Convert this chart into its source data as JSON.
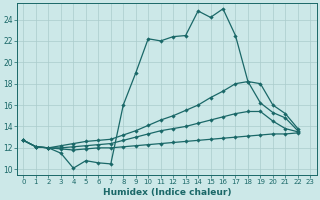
{
  "xlabel": "Humidex (Indice chaleur)",
  "bg_color": "#cce8e8",
  "grid_color": "#aacccc",
  "line_color": "#1a6868",
  "xlim": [
    -0.5,
    23.5
  ],
  "ylim": [
    9.5,
    25.5
  ],
  "xticks": [
    0,
    1,
    2,
    3,
    4,
    5,
    6,
    7,
    8,
    9,
    10,
    11,
    12,
    13,
    14,
    15,
    16,
    17,
    18,
    19,
    20,
    21,
    22,
    23
  ],
  "yticks": [
    10,
    12,
    14,
    16,
    18,
    20,
    22,
    24
  ],
  "lines": [
    [
      12.7,
      12.1,
      12.0,
      11.5,
      10.1,
      10.8,
      10.6,
      10.5,
      16.0,
      19.0,
      22.2,
      22.0,
      22.4,
      22.5,
      24.8,
      24.2,
      25.0,
      22.5,
      18.2,
      16.2,
      15.3,
      14.8,
      13.6,
      null
    ],
    [
      12.7,
      12.1,
      12.0,
      12.2,
      12.4,
      12.6,
      12.7,
      12.8,
      13.2,
      13.6,
      14.1,
      14.6,
      15.0,
      15.5,
      16.0,
      16.7,
      17.3,
      18.0,
      18.2,
      18.0,
      16.0,
      15.2,
      13.8,
      null
    ],
    [
      12.7,
      12.1,
      12.0,
      12.0,
      12.1,
      12.2,
      12.3,
      12.4,
      12.7,
      13.0,
      13.3,
      13.6,
      13.8,
      14.0,
      14.3,
      14.6,
      14.9,
      15.2,
      15.4,
      15.4,
      14.5,
      13.8,
      13.5,
      null
    ],
    [
      12.7,
      12.1,
      12.0,
      11.9,
      11.8,
      11.9,
      12.0,
      12.0,
      12.1,
      12.2,
      12.3,
      12.4,
      12.5,
      12.6,
      12.7,
      12.8,
      12.9,
      13.0,
      13.1,
      13.2,
      13.3,
      13.3,
      13.4,
      null
    ]
  ]
}
